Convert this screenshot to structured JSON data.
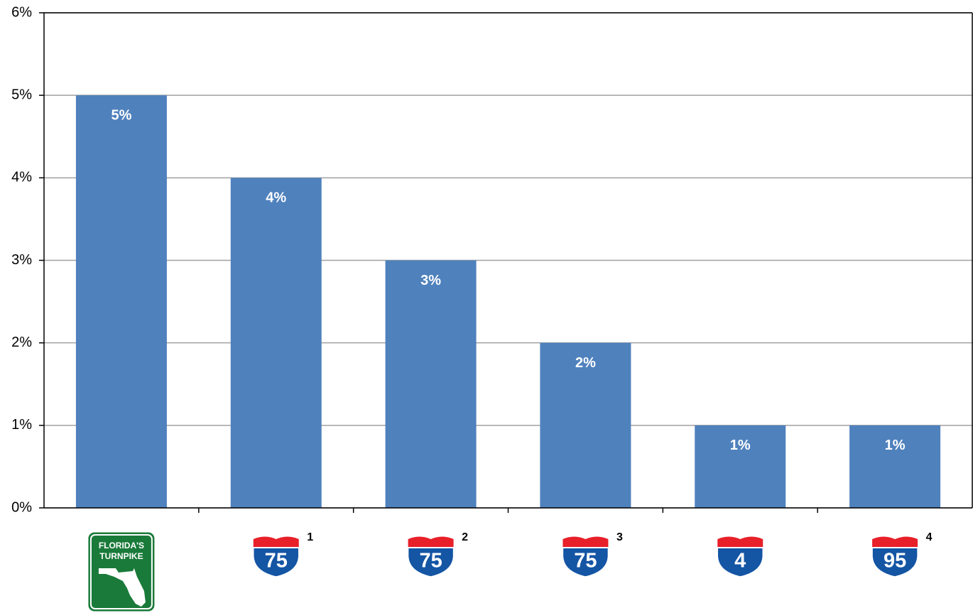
{
  "chart_data": {
    "type": "bar",
    "categories": [
      [
        "FLORIDA'S",
        "TURNPIKE"
      ],
      "75",
      "75",
      "75",
      "4",
      "95"
    ],
    "footnotes": [
      null,
      "1",
      "2",
      "3",
      null,
      "4"
    ],
    "values": [
      5,
      4,
      3,
      2,
      1,
      1
    ],
    "value_labels": [
      "5%",
      "4%",
      "3%",
      "2%",
      "1%",
      "1%"
    ],
    "color": "#4f81bd",
    "ylim": [
      0,
      6
    ],
    "yticks": [
      {
        "value": 0,
        "label": "0%"
      },
      {
        "value": 1,
        "label": "1%"
      },
      {
        "value": 2,
        "label": "2%"
      },
      {
        "value": 3,
        "label": "3%"
      },
      {
        "value": 4,
        "label": "4%"
      },
      {
        "value": 5,
        "label": "5%"
      },
      {
        "value": 6,
        "label": "6%"
      }
    ],
    "grid": true
  }
}
